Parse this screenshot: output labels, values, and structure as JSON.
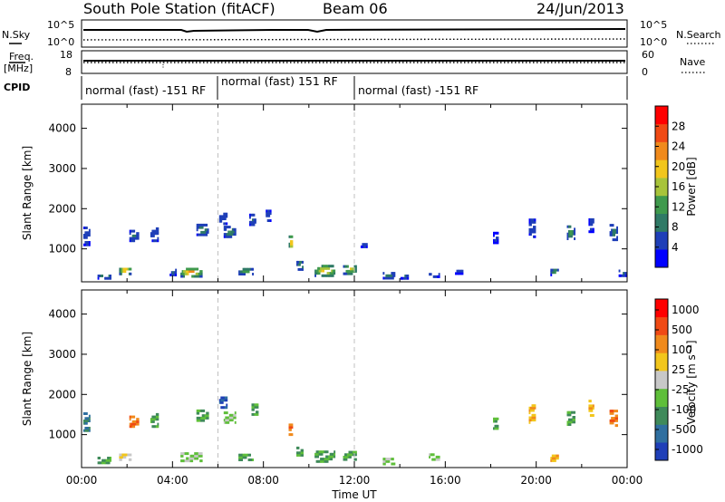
{
  "header": {
    "station": "South Pole Station (fitACF)",
    "beam": "Beam 06",
    "date": "24/Jun/2013"
  },
  "strip_labels": {
    "nsky": "N.Sky",
    "nsearch": "N.Search",
    "freq": "Freq.",
    "freq_unit": "[MHz]",
    "nave": "Nave",
    "cpid": "CPID",
    "nsky_ticks": [
      "10^5",
      "10^0"
    ],
    "nsearch_ticks": [
      "10^5",
      "10^0"
    ],
    "freq_ticks": [
      "18",
      "8"
    ],
    "nave_ticks": [
      "60",
      "0"
    ]
  },
  "cpid_segments": [
    {
      "start": 0,
      "label": "normal (fast) -151 RF"
    },
    {
      "start": 6,
      "label": "normal (fast) 151 RF"
    },
    {
      "start": 12,
      "label": "normal (fast) -151 RF"
    }
  ],
  "chart_data": [
    {
      "type": "heatmap",
      "name": "power-panel",
      "ylabel": "Slant Range [km]",
      "xlim": [
        0,
        24
      ],
      "ylim": [
        180,
        4600
      ],
      "yticks": [
        {
          "v": 1000,
          "t": "1000"
        },
        {
          "v": 2000,
          "t": "2000"
        },
        {
          "v": 3000,
          "t": "3000"
        },
        {
          "v": 4000,
          "t": "4000"
        }
      ],
      "colorbar": {
        "label": "Power [dB]",
        "ticks": [
          "4",
          "8",
          "12",
          "16",
          "20",
          "24",
          "28"
        ],
        "range": [
          0,
          32
        ]
      },
      "color_scale": [
        "#0000ff",
        "#1f3fb8",
        "#2f7a66",
        "#3f9a4d",
        "#a8c43a",
        "#f2c61c",
        "#f08a1c",
        "#f04a14",
        "#ff0000"
      ],
      "blobs": [
        {
          "t": 0.2,
          "r": 1300,
          "dt": 0.25,
          "dr": 450,
          "v": 6
        },
        {
          "t": 1.0,
          "r": 300,
          "dt": 0.6,
          "dr": 120,
          "v": 10
        },
        {
          "t": 1.9,
          "r": 440,
          "dt": 0.5,
          "dr": 180,
          "v": 25
        },
        {
          "t": 2.3,
          "r": 1300,
          "dt": 0.4,
          "dr": 250,
          "v": 8
        },
        {
          "t": 3.2,
          "r": 1350,
          "dt": 0.35,
          "dr": 350,
          "v": 6
        },
        {
          "t": 4.0,
          "r": 400,
          "dt": 0.25,
          "dr": 150,
          "v": 8
        },
        {
          "t": 4.8,
          "r": 390,
          "dt": 0.9,
          "dr": 200,
          "v": 27
        },
        {
          "t": 5.3,
          "r": 1450,
          "dt": 0.5,
          "dr": 250,
          "v": 12
        },
        {
          "t": 6.2,
          "r": 1750,
          "dt": 0.3,
          "dr": 300,
          "v": 7
        },
        {
          "t": 6.5,
          "r": 1400,
          "dt": 0.5,
          "dr": 250,
          "v": 11
        },
        {
          "t": 7.2,
          "r": 420,
          "dt": 0.6,
          "dr": 150,
          "v": 14
        },
        {
          "t": 7.5,
          "r": 1700,
          "dt": 0.25,
          "dr": 250,
          "v": 7
        },
        {
          "t": 8.2,
          "r": 1800,
          "dt": 0.2,
          "dr": 250,
          "v": 6
        },
        {
          "t": 9.2,
          "r": 1150,
          "dt": 0.18,
          "dr": 350,
          "v": 26
        },
        {
          "t": 9.6,
          "r": 560,
          "dt": 0.3,
          "dr": 200,
          "v": 12
        },
        {
          "t": 10.7,
          "r": 430,
          "dt": 0.9,
          "dr": 250,
          "v": 24
        },
        {
          "t": 11.8,
          "r": 470,
          "dt": 0.6,
          "dr": 230,
          "v": 19
        },
        {
          "t": 12.4,
          "r": 1100,
          "dt": 0.25,
          "dr": 150,
          "v": 6
        },
        {
          "t": 13.5,
          "r": 320,
          "dt": 0.5,
          "dr": 150,
          "v": 10
        },
        {
          "t": 14.2,
          "r": 300,
          "dt": 0.35,
          "dr": 120,
          "v": 7
        },
        {
          "t": 15.5,
          "r": 330,
          "dt": 0.45,
          "dr": 100,
          "v": 6
        },
        {
          "t": 16.6,
          "r": 400,
          "dt": 0.35,
          "dr": 80,
          "v": 5
        },
        {
          "t": 18.2,
          "r": 1250,
          "dt": 0.2,
          "dr": 250,
          "v": 4
        },
        {
          "t": 19.8,
          "r": 1500,
          "dt": 0.25,
          "dr": 450,
          "v": 6
        },
        {
          "t": 20.8,
          "r": 400,
          "dt": 0.35,
          "dr": 150,
          "v": 12
        },
        {
          "t": 21.5,
          "r": 1400,
          "dt": 0.3,
          "dr": 350,
          "v": 14
        },
        {
          "t": 22.4,
          "r": 1600,
          "dt": 0.2,
          "dr": 400,
          "v": 5
        },
        {
          "t": 23.4,
          "r": 1400,
          "dt": 0.35,
          "dr": 400,
          "v": 9
        },
        {
          "t": 23.8,
          "r": 380,
          "dt": 0.35,
          "dr": 150,
          "v": 7
        }
      ]
    },
    {
      "type": "heatmap",
      "name": "velocity-panel",
      "ylabel": "Slant Range [km]",
      "xlabel": "Time UT",
      "xlim": [
        0,
        24
      ],
      "ylim": [
        180,
        4600
      ],
      "xticks": [
        "00:00",
        "04:00",
        "08:00",
        "12:00",
        "16:00",
        "20:00",
        "00:00"
      ],
      "yticks": [
        {
          "v": 1000,
          "t": "1000"
        },
        {
          "v": 2000,
          "t": "2000"
        },
        {
          "v": 3000,
          "t": "3000"
        },
        {
          "v": 4000,
          "t": "4000"
        }
      ],
      "colorbar": {
        "label": "Velocity [m s⁻¹]",
        "ticks": [
          "1000",
          "500",
          "100",
          "25",
          "-25",
          "-100",
          "-500",
          "-1000"
        ]
      },
      "color_scale": [
        "#1f3fb8",
        "#2f6fa0",
        "#3f8a5a",
        "#5fbf3a",
        "#c8c8c8",
        "#f2c61c",
        "#f08a1c",
        "#f04a14",
        "#ff0000"
      ],
      "blobs": [
        {
          "t": 0.2,
          "r": 1300,
          "dt": 0.25,
          "dr": 450,
          "v": 1
        },
        {
          "t": 1.0,
          "r": 350,
          "dt": 0.6,
          "dr": 160,
          "v": 2
        },
        {
          "t": 1.9,
          "r": 440,
          "dt": 0.5,
          "dr": 180,
          "v": 4
        },
        {
          "t": 2.3,
          "r": 1300,
          "dt": 0.4,
          "dr": 250,
          "v": 6
        },
        {
          "t": 3.2,
          "r": 1350,
          "dt": 0.35,
          "dr": 350,
          "v": 2
        },
        {
          "t": 4.8,
          "r": 420,
          "dt": 0.9,
          "dr": 200,
          "v": 3
        },
        {
          "t": 5.3,
          "r": 1450,
          "dt": 0.5,
          "dr": 250,
          "v": 2
        },
        {
          "t": 6.2,
          "r": 1800,
          "dt": 0.3,
          "dr": 300,
          "v": 0
        },
        {
          "t": 6.5,
          "r": 1400,
          "dt": 0.5,
          "dr": 250,
          "v": 3
        },
        {
          "t": 7.2,
          "r": 420,
          "dt": 0.6,
          "dr": 150,
          "v": 2
        },
        {
          "t": 7.6,
          "r": 1600,
          "dt": 0.25,
          "dr": 250,
          "v": 2
        },
        {
          "t": 9.2,
          "r": 1150,
          "dt": 0.18,
          "dr": 350,
          "v": 6
        },
        {
          "t": 9.6,
          "r": 560,
          "dt": 0.3,
          "dr": 200,
          "v": 2
        },
        {
          "t": 10.7,
          "r": 430,
          "dt": 0.9,
          "dr": 250,
          "v": 2
        },
        {
          "t": 11.8,
          "r": 470,
          "dt": 0.6,
          "dr": 230,
          "v": 2
        },
        {
          "t": 13.5,
          "r": 320,
          "dt": 0.5,
          "dr": 150,
          "v": 3
        },
        {
          "t": 15.5,
          "r": 430,
          "dt": 0.45,
          "dr": 150,
          "v": 3
        },
        {
          "t": 18.2,
          "r": 1250,
          "dt": 0.2,
          "dr": 250,
          "v": 2
        },
        {
          "t": 19.8,
          "r": 1500,
          "dt": 0.25,
          "dr": 450,
          "v": 5
        },
        {
          "t": 20.8,
          "r": 400,
          "dt": 0.35,
          "dr": 150,
          "v": 5
        },
        {
          "t": 21.5,
          "r": 1400,
          "dt": 0.3,
          "dr": 350,
          "v": 2
        },
        {
          "t": 22.4,
          "r": 1650,
          "dt": 0.2,
          "dr": 400,
          "v": 5
        },
        {
          "t": 23.4,
          "r": 1400,
          "dt": 0.35,
          "dr": 400,
          "v": 6
        }
      ]
    }
  ]
}
